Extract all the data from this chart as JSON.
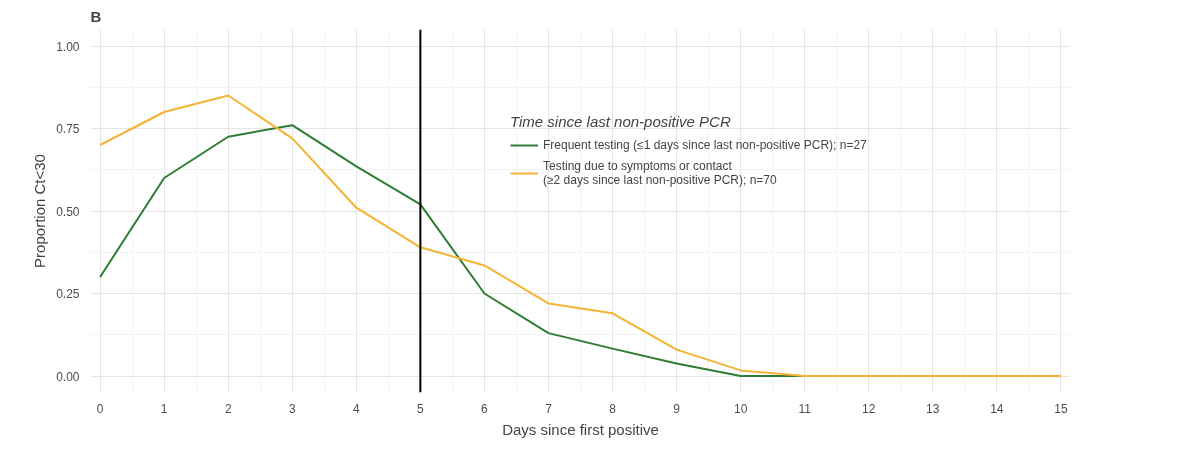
{
  "chart_data": {
    "type": "line",
    "title": "B",
    "xlabel": "Days since first positive",
    "ylabel": "Proportion Ct<30",
    "legend_title": "Time since last non-positive PCR",
    "x": [
      0,
      1,
      2,
      3,
      4,
      5,
      6,
      7,
      8,
      9,
      10,
      11,
      12,
      13,
      14,
      15
    ],
    "series": [
      {
        "name": "Frequent testing (≤1 days since last non-positive PCR); n=27",
        "color": "#2e7d32",
        "values": [
          0.3,
          0.6,
          0.725,
          0.76,
          0.635,
          0.52,
          0.25,
          0.13,
          0.083,
          0.038,
          0,
          0,
          null,
          null,
          null,
          null
        ]
      },
      {
        "name": "Testing due to symptoms or contact\n(≥2 days since last non-positive PCR); n=70",
        "color": "#f5b335",
        "values": [
          0.7,
          0.8,
          0.85,
          0.72,
          0.51,
          0.39,
          0.335,
          0.22,
          0.19,
          0.08,
          0.017,
          0,
          0,
          0,
          0,
          0
        ]
      }
    ],
    "xlim": [
      -0.15,
      15.15
    ],
    "ylim": [
      -0.05,
      1.05
    ],
    "xticks": [
      0,
      1,
      2,
      3,
      4,
      5,
      6,
      7,
      8,
      9,
      10,
      11,
      12,
      13,
      14,
      15
    ],
    "yticks": [
      {
        "value": 0,
        "label": "0.00"
      },
      {
        "value": 0.25,
        "label": "0.25"
      },
      {
        "value": 0.5,
        "label": "0.50"
      },
      {
        "value": 0.75,
        "label": "0.75"
      },
      {
        "value": 1,
        "label": "1.00"
      }
    ],
    "ref_lines": [
      {
        "axis": "x",
        "value": 5,
        "label": null,
        "color": "#000000"
      }
    ],
    "grid": true,
    "legend": "top right",
    "line_style": "solid",
    "marker": "none"
  }
}
